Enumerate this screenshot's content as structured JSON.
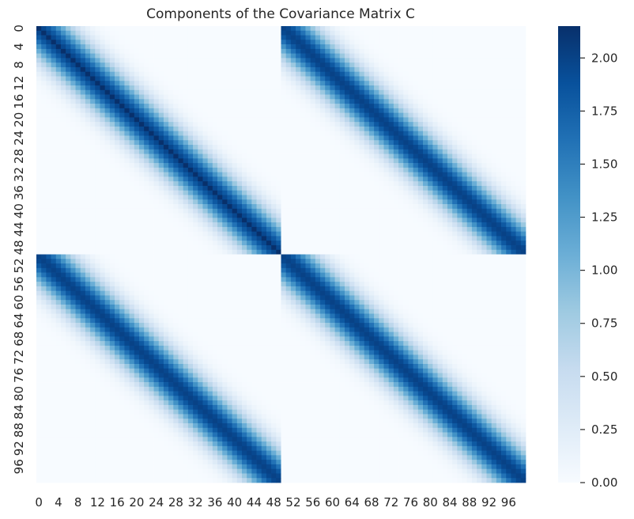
{
  "chart_data": {
    "type": "heatmap",
    "title": "Components of the Covariance Matrix C",
    "xlabel": "",
    "ylabel": "",
    "n": 100,
    "block_size": 50,
    "x_tick_labels": [
      "0",
      "4",
      "8",
      "12",
      "16",
      "20",
      "24",
      "28",
      "32",
      "36",
      "40",
      "44",
      "48",
      "52",
      "56",
      "60",
      "64",
      "68",
      "72",
      "76",
      "80",
      "84",
      "88",
      "92",
      "96"
    ],
    "y_tick_labels": [
      "0",
      "4",
      "8",
      "12",
      "16",
      "20",
      "24",
      "28",
      "32",
      "36",
      "40",
      "44",
      "48",
      "52",
      "56",
      "60",
      "64",
      "68",
      "72",
      "76",
      "80",
      "84",
      "88",
      "92",
      "96"
    ],
    "colormap": "Blues",
    "colors": [
      "#f7fbff",
      "#deebf7",
      "#c6dbef",
      "#9ecae1",
      "#6baed6",
      "#4292c6",
      "#2171b5",
      "#08519c",
      "#08306b"
    ],
    "value_range": [
      0.0,
      2.15
    ],
    "colorbar_ticks": [
      0.0,
      0.25,
      0.5,
      0.75,
      1.0,
      1.25,
      1.5,
      1.75,
      2.0
    ],
    "colorbar_tick_labels": [
      "0.00",
      "0.25",
      "0.50",
      "0.75",
      "1.00",
      "1.25",
      "1.50",
      "1.75",
      "2.00"
    ],
    "blocks": [
      {
        "name": "top-left",
        "diag_value": 2.15,
        "peak_value": 2.0,
        "bandwidth": 4.5
      },
      {
        "name": "top-right",
        "peak_value": 2.0,
        "bandwidth": 4.5
      },
      {
        "name": "bottom-left",
        "peak_value": 2.0,
        "bandwidth": 4.5
      },
      {
        "name": "bottom-right",
        "peak_value": 2.0,
        "bandwidth": 4.5
      }
    ]
  }
}
